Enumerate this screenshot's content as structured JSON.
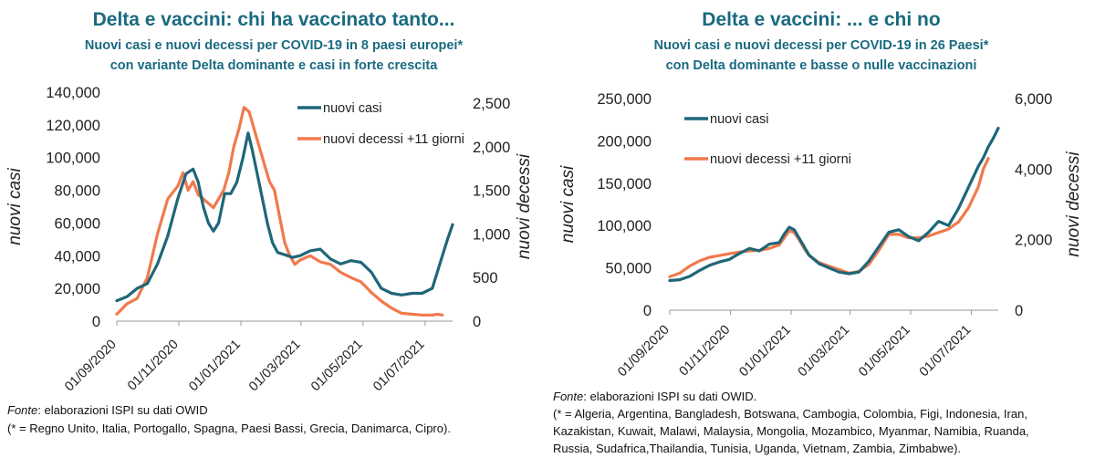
{
  "colors": {
    "title": "#1a6a80",
    "cases": "#1f6678",
    "deaths": "#f07a4c"
  },
  "panels": [
    {
      "title": "Delta e vaccini: chi ha vaccinato tanto...",
      "subtitle1": "Nuovi casi e nuovi decessi per COVID-19 in 8 paesi europei*",
      "subtitle2": "con variante Delta dominante e casi in forte crescita",
      "source_label": "Fonte",
      "source_text": ": elaborazioni ISPI su dati OWID",
      "note_lines": [
        "(* = Regno Unito, Italia, Portogallo, Spagna, Paesi Bassi, Grecia, Danimarca, Cipro)."
      ]
    },
    {
      "title": "Delta e vaccini: ... e chi no",
      "subtitle1": "Nuovi casi e nuovi decessi per COVID-19 in 26 Paesi*",
      "subtitle2": "con Delta dominante e basse o nulle vaccinazioni",
      "source_label": "Fonte",
      "source_text": ": elaborazioni ISPI su dati OWID.",
      "note_lines": [
        "(* = Algeria, Argentina, Bangladesh, Botswana, Cambogia, Colombia, Figi, Indonesia, Iran,",
        "Kazakistan, Kuwait, Malawi, Malaysia, Mongolia, Mozambico, Myanmar, Namibia, Ruanda,",
        "Russia, Sudafrica,Thailandia, Tunisia, Uganda, Vietnam, Zambia, Zimbabwe)."
      ]
    }
  ],
  "chart_data": [
    {
      "type": "line",
      "title": "Delta e vaccini: chi ha vaccinato tanto...",
      "x_unit": "days since 01/09/2020",
      "x_range": [
        0,
        330
      ],
      "x_ticks": [
        {
          "label": "01/09/2020",
          "day": 0
        },
        {
          "label": "01/11/2020",
          "day": 61
        },
        {
          "label": "01/01/2021",
          "day": 122
        },
        {
          "label": "01/03/2021",
          "day": 181
        },
        {
          "label": "01/05/2021",
          "day": 242
        },
        {
          "label": "01/07/2021",
          "day": 303
        }
      ],
      "ylabel": "nuovi casi",
      "ylim": [
        0,
        140000
      ],
      "yticks": [
        "0",
        "20,000",
        "40,000",
        "60,000",
        "80,000",
        "100,000",
        "120,000",
        "140,000"
      ],
      "yticks_values": [
        0,
        20000,
        40000,
        60000,
        80000,
        100000,
        120000,
        140000
      ],
      "y2label": "nuovi decessi",
      "y2lim": [
        0,
        2625
      ],
      "y2ticks": [
        "0",
        "500",
        "1,000",
        "1,500",
        "2,000",
        "2,500"
      ],
      "y2ticks_values": [
        0,
        500,
        1000,
        1500,
        2000,
        2500
      ],
      "legend": [
        "nuovi casi",
        "nuovi decessi +11 giorni"
      ],
      "series": [
        {
          "name": "nuovi casi",
          "axis": "y",
          "x": [
            0,
            10,
            20,
            30,
            40,
            50,
            60,
            68,
            75,
            80,
            85,
            90,
            95,
            100,
            106,
            112,
            118,
            124,
            129,
            133,
            138,
            143,
            148,
            153,
            158,
            163,
            168,
            173,
            180,
            190,
            200,
            210,
            220,
            230,
            240,
            250,
            260,
            270,
            280,
            290,
            300,
            310,
            315,
            320,
            325,
            330
          ],
          "y": [
            12500,
            15000,
            20000,
            23000,
            35000,
            52000,
            75000,
            90000,
            93000,
            85000,
            70000,
            60000,
            55000,
            60000,
            78000,
            78000,
            85000,
            100000,
            115000,
            105000,
            90000,
            75000,
            60000,
            48000,
            42000,
            41000,
            40000,
            39000,
            40000,
            43000,
            44000,
            38000,
            35000,
            37000,
            36000,
            30000,
            20000,
            17000,
            16000,
            17000,
            17000,
            20000,
            30000,
            40000,
            50000,
            59000
          ]
        },
        {
          "name": "nuovi decessi +11 giorni",
          "axis": "y2",
          "x": [
            0,
            10,
            20,
            30,
            40,
            50,
            60,
            65,
            70,
            75,
            80,
            85,
            90,
            95,
            100,
            105,
            110,
            115,
            120,
            125,
            130,
            135,
            140,
            145,
            150,
            155,
            160,
            165,
            170,
            175,
            180,
            190,
            200,
            210,
            220,
            230,
            240,
            250,
            260,
            270,
            280,
            290,
            300,
            310,
            315,
            320
          ],
          "y": [
            80,
            200,
            260,
            500,
            1000,
            1400,
            1550,
            1700,
            1500,
            1600,
            1450,
            1400,
            1350,
            1300,
            1400,
            1500,
            1700,
            2000,
            2200,
            2450,
            2400,
            2200,
            2000,
            1800,
            1600,
            1500,
            1200,
            900,
            750,
            650,
            700,
            750,
            680,
            650,
            560,
            500,
            450,
            330,
            230,
            150,
            90,
            80,
            70,
            70,
            80,
            70
          ]
        }
      ]
    },
    {
      "type": "line",
      "title": "Delta e vaccini: ... e chi no",
      "x_unit": "days since 01/09/2020",
      "x_range": [
        0,
        330
      ],
      "x_ticks": [
        {
          "label": "01/09/2020",
          "day": 0
        },
        {
          "label": "01/11/2020",
          "day": 61
        },
        {
          "label": "01/01/2021",
          "day": 122
        },
        {
          "label": "01/03/2021",
          "day": 181
        },
        {
          "label": "01/05/2021",
          "day": 242
        },
        {
          "label": "01/07/2021",
          "day": 303
        }
      ],
      "ylabel": "nuovi casi",
      "ylim": [
        0,
        250000
      ],
      "yticks": [
        "0",
        "50,000",
        "100,000",
        "150,000",
        "200,000",
        "250,000"
      ],
      "yticks_values": [
        0,
        50000,
        100000,
        150000,
        200000,
        250000
      ],
      "y2label": "nuovi decessi",
      "y2lim": [
        0,
        6000
      ],
      "y2ticks": [
        "0",
        "2,000",
        "4,000",
        "6,000"
      ],
      "y2ticks_values": [
        0,
        2000,
        4000,
        6000
      ],
      "legend": [
        "nuovi casi",
        "nuovi decessi +11 giorni"
      ],
      "series": [
        {
          "name": "nuovi casi",
          "axis": "y",
          "x": [
            0,
            10,
            20,
            30,
            40,
            50,
            60,
            70,
            80,
            90,
            100,
            110,
            115,
            120,
            125,
            130,
            135,
            140,
            150,
            160,
            170,
            180,
            190,
            200,
            210,
            220,
            230,
            240,
            250,
            260,
            270,
            280,
            290,
            300,
            310,
            315,
            320,
            325,
            330
          ],
          "y": [
            35000,
            36000,
            40000,
            47000,
            53000,
            57000,
            60000,
            67000,
            73000,
            70000,
            78000,
            80000,
            90000,
            98000,
            95000,
            85000,
            75000,
            65000,
            55000,
            50000,
            45000,
            43000,
            45000,
            58000,
            75000,
            92000,
            95000,
            87000,
            82000,
            92000,
            105000,
            100000,
            120000,
            145000,
            170000,
            180000,
            193000,
            203000,
            215000
          ]
        },
        {
          "name": "nuovi decessi +11 giorni",
          "axis": "y2",
          "x": [
            0,
            10,
            20,
            30,
            40,
            50,
            60,
            70,
            80,
            90,
            100,
            110,
            115,
            120,
            125,
            130,
            135,
            140,
            150,
            160,
            170,
            180,
            190,
            200,
            210,
            220,
            230,
            240,
            250,
            260,
            270,
            280,
            290,
            300,
            310,
            315,
            320
          ],
          "y": [
            950,
            1050,
            1250,
            1400,
            1500,
            1550,
            1600,
            1650,
            1680,
            1700,
            1750,
            1850,
            2050,
            2250,
            2200,
            2000,
            1750,
            1550,
            1350,
            1250,
            1150,
            1050,
            1100,
            1300,
            1700,
            2150,
            2150,
            2050,
            2050,
            2100,
            2200,
            2300,
            2500,
            2900,
            3500,
            4000,
            4300
          ]
        }
      ]
    }
  ]
}
